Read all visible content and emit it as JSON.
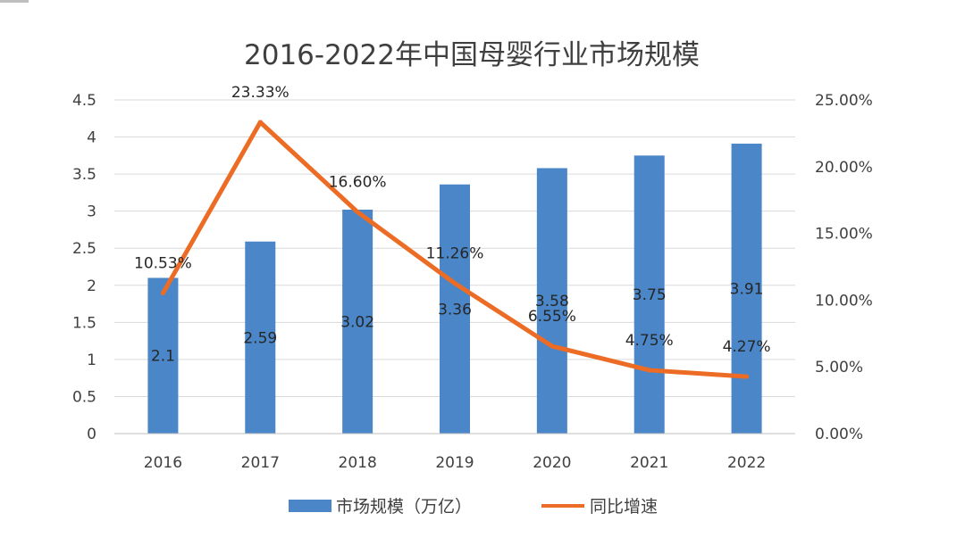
{
  "chart_data": {
    "type": "bar",
    "title": "2016-2022年中国母婴行业市场规模",
    "categories": [
      "2016",
      "2017",
      "2018",
      "2019",
      "2020",
      "2021",
      "2022"
    ],
    "series": [
      {
        "name": "市场规模（万亿）",
        "type": "bar",
        "axis": "left",
        "values": [
          2.1,
          2.59,
          3.02,
          3.36,
          3.58,
          3.75,
          3.91
        ],
        "labels": [
          "2.1",
          "2.59",
          "3.02",
          "3.36",
          "3.58",
          "3.75",
          "3.91"
        ],
        "color": "#4a86c8"
      },
      {
        "name": "同比增速",
        "type": "line",
        "axis": "right",
        "values": [
          10.53,
          23.33,
          16.6,
          11.26,
          6.55,
          4.75,
          4.27
        ],
        "labels": [
          "10.53%",
          "23.33%",
          "16.60%",
          "11.26%",
          "6.55%",
          "4.75%",
          "4.27%"
        ],
        "color": "#ed6c25"
      }
    ],
    "y_left": {
      "ylim": [
        0,
        4.5
      ],
      "ticks": [
        "0",
        "0.5",
        "1",
        "1.5",
        "2",
        "2.5",
        "3",
        "3.5",
        "4",
        "4.5"
      ]
    },
    "y_right": {
      "ylim": [
        0,
        25
      ],
      "ticks": [
        "0.00%",
        "5.00%",
        "10.00%",
        "15.00%",
        "20.00%",
        "25.00%"
      ]
    },
    "grid": true,
    "legend_position": "bottom"
  }
}
